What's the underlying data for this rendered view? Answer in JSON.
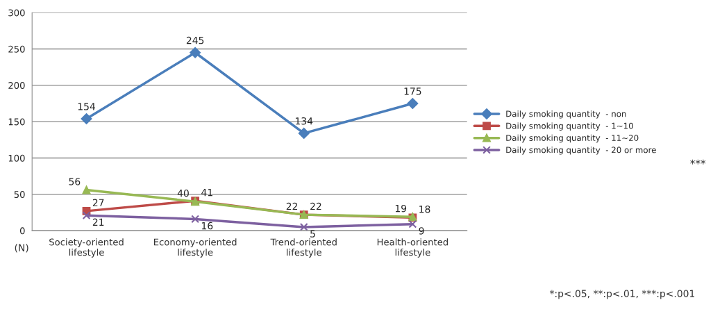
{
  "chart_data": {
    "type": "line",
    "categories": [
      "Society-oriented\nlifestyle",
      "Economy-oriented\nlifestyle",
      "Trend-oriented\nlifestyle",
      "Health-oriented\nlifestyle"
    ],
    "series": [
      {
        "name": "Daily smoking quantity  - non",
        "color": "#4a7ebb",
        "marker": "diamond",
        "values": [
          154,
          245,
          134,
          175
        ]
      },
      {
        "name": "Daily smoking quantity  - 1~10",
        "color": "#be4b48",
        "marker": "square",
        "values": [
          27,
          41,
          22,
          18
        ]
      },
      {
        "name": "Daily smoking quantity  - 11~20",
        "color": "#98b954",
        "marker": "triangle",
        "values": [
          56,
          40,
          22,
          19
        ]
      },
      {
        "name": "Daily smoking quantity  - 20 or more",
        "color": "#7d60a0",
        "marker": "cross",
        "values": [
          21,
          16,
          5,
          9
        ]
      }
    ],
    "ylim": [
      0,
      300
    ],
    "yticks": [
      0,
      50,
      100,
      150,
      200,
      250,
      300
    ],
    "grid": "y",
    "legend": "right",
    "data_labels": true,
    "annotations": [
      "(N)",
      "***",
      "*:p<.05, **:p<.01, ***:p<.001"
    ]
  }
}
